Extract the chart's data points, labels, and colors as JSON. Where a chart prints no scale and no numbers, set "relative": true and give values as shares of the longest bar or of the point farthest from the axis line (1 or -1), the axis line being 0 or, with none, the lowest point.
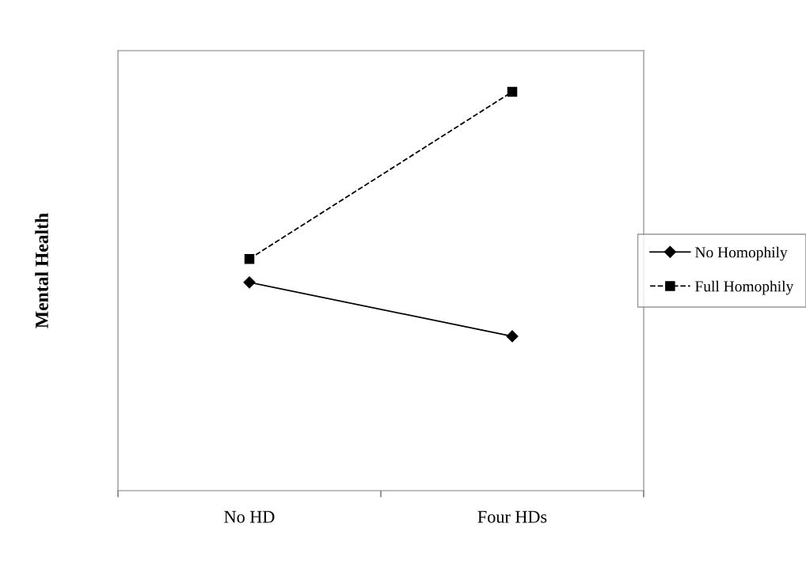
{
  "chart_data": {
    "type": "line",
    "ylabel": "Mental Health",
    "relative": true,
    "categories": [
      "No HD",
      "Four HDs"
    ],
    "series": [
      {
        "name": "No Homophily",
        "color": "#000000",
        "values": [
          0.522,
          0.387
        ],
        "marker": "diamond",
        "line_style": "solid"
      },
      {
        "name": "Full Homophily",
        "color": "#000000",
        "values": [
          0.581,
          1
        ],
        "marker": "square",
        "line_style": "dashed"
      }
    ],
    "legend": "right",
    "grid": false
  }
}
